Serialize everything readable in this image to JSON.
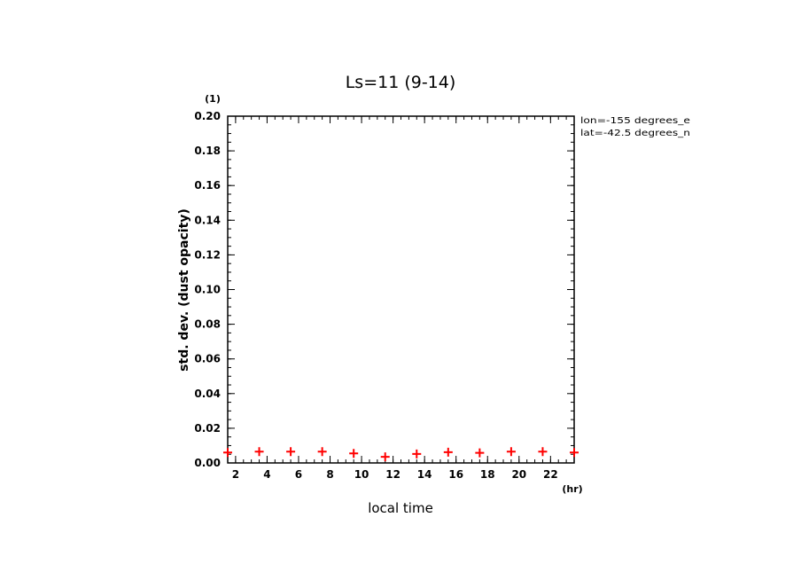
{
  "chart_data": {
    "type": "scatter",
    "title": "Ls=11 (9-14)",
    "xlabel": "local time",
    "xunit": "(hr)",
    "ylabel": "std. dev. (dust opacity)",
    "yunit": "(1)",
    "annotations": [
      "lon=-155 degrees_e",
      "lat=-42.5 degrees_n"
    ],
    "xlim": [
      1.5,
      23.5
    ],
    "ylim": [
      0,
      0.2
    ],
    "xticks": [
      2,
      4,
      6,
      8,
      10,
      12,
      14,
      16,
      18,
      20,
      22
    ],
    "xtick_labels": [
      "2",
      "4",
      "6",
      "8",
      "10",
      "12",
      "14",
      "16",
      "18",
      "20",
      "22"
    ],
    "yticks": [
      0,
      0.02,
      0.04,
      0.06,
      0.08,
      0.1,
      0.12,
      0.14,
      0.16,
      0.18,
      0.2
    ],
    "ytick_labels": [
      "0.00",
      "0.02",
      "0.04",
      "0.06",
      "0.08",
      "0.10",
      "0.12",
      "0.14",
      "0.16",
      "0.18",
      "0.20"
    ],
    "marker": "plus",
    "marker_color": "#ff0000",
    "grid": false,
    "series": [
      {
        "x": [
          1.5,
          3.5,
          5.5,
          7.5,
          9.5,
          11.5,
          13.5,
          15.5,
          17.5,
          19.5,
          21.5,
          23.5
        ],
        "y": [
          0.006,
          0.0065,
          0.0065,
          0.0065,
          0.0055,
          0.0035,
          0.0052,
          0.0062,
          0.0058,
          0.0065,
          0.0065,
          0.006
        ]
      }
    ]
  }
}
